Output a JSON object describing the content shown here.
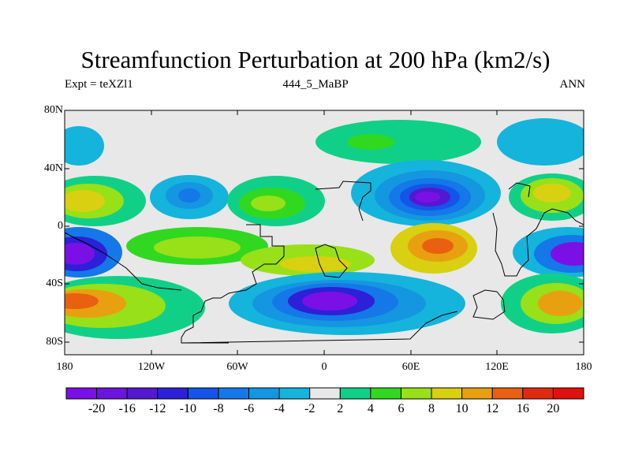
{
  "title": "Streamfunction Perturbation at 200 hPa (km2/s)",
  "left_label": "Expt = teXZl1",
  "center_label": "444_5_MaBP",
  "right_label": "ANN",
  "lat_ticks": [
    "80N",
    "40N",
    "0",
    "40S",
    "80S"
  ],
  "lon_ticks": [
    "180",
    "120W",
    "60W",
    "0",
    "60E",
    "120E",
    "180"
  ],
  "colorbar": {
    "labels": [
      "-20",
      "-16",
      "-12",
      "-10",
      "-8",
      "-6",
      "-4",
      "-2",
      "2",
      "4",
      "6",
      "8",
      "10",
      "12",
      "16",
      "20"
    ],
    "colors": [
      "#7a10e6",
      "#6a14dc",
      "#5318d0",
      "#2c20d8",
      "#1454e8",
      "#1478e8",
      "#1496e0",
      "#14b4dc",
      "#e8e8e8",
      "#10d088",
      "#30d820",
      "#98e018",
      "#d8d010",
      "#e8a010",
      "#e86010",
      "#e02a10",
      "#e01010"
    ]
  },
  "colors": {
    "neutral": "#e8e8e8",
    "frame": "#000000"
  }
}
